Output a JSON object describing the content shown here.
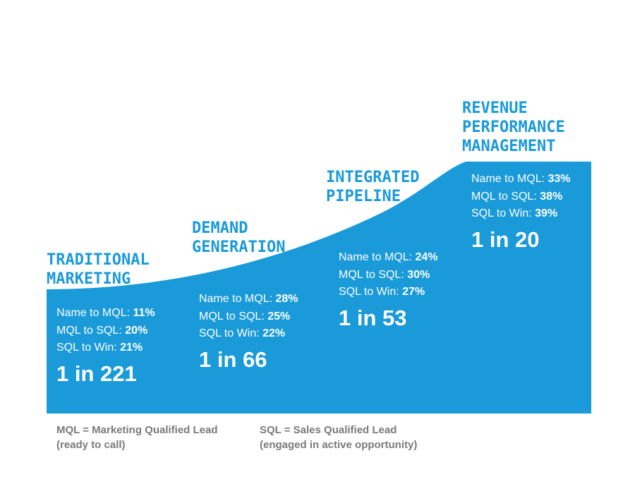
{
  "colors": {
    "accent": "#1a9ad9",
    "text_on_accent": "#ffffff",
    "legend_text": "#7a7a7a"
  },
  "stages": [
    {
      "title_lines": [
        "TRADITIONAL",
        "MARKETING"
      ],
      "stats": [
        {
          "label": "Name to MQL:",
          "value": "11%"
        },
        {
          "label": "MQL to SQL:",
          "value": "20%"
        },
        {
          "label": "SQL to Win:",
          "value": "21%"
        }
      ],
      "ratio": "1 in 221"
    },
    {
      "title_lines": [
        "DEMAND",
        "GENERATION"
      ],
      "stats": [
        {
          "label": "Name to MQL:",
          "value": "28%"
        },
        {
          "label": "MQL to SQL:",
          "value": "25%"
        },
        {
          "label": "SQL to Win:",
          "value": "22%"
        }
      ],
      "ratio": "1 in 66"
    },
    {
      "title_lines": [
        "INTEGRATED",
        "PIPELINE"
      ],
      "stats": [
        {
          "label": "Name to MQL:",
          "value": "24%"
        },
        {
          "label": "MQL to SQL:",
          "value": "30%"
        },
        {
          "label": "SQL to Win:",
          "value": "27%"
        }
      ],
      "ratio": "1 in 53"
    },
    {
      "title_lines": [
        "REVENUE",
        "PERFORMANCE",
        "MANAGEMENT"
      ],
      "stats": [
        {
          "label": "Name to MQL:",
          "value": "33%"
        },
        {
          "label": "MQL to SQL:",
          "value": "38%"
        },
        {
          "label": "SQL to Win:",
          "value": "39%"
        }
      ],
      "ratio": "1 in 20"
    }
  ],
  "legend": [
    {
      "line1": "MQL = Marketing Qualified Lead",
      "line2": "(ready to call)"
    },
    {
      "line1": "SQL = Sales Qualified Lead",
      "line2": "(engaged in active opportunity)"
    }
  ]
}
